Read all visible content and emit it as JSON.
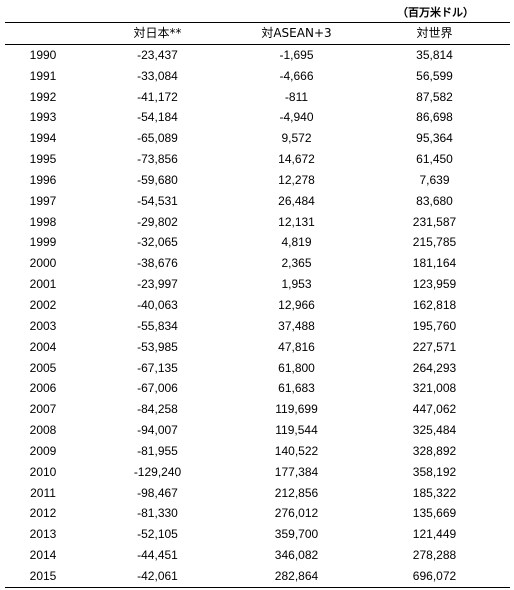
{
  "unit_note": "（百万米ドル）",
  "columns": {
    "year": "",
    "japan": "対日本**",
    "asean": "対ASEAN+3",
    "world": "対世界"
  },
  "rows": [
    {
      "year": "1990",
      "japan": "-23,437",
      "asean": "-1,695",
      "world": "35,814"
    },
    {
      "year": "1991",
      "japan": "-33,084",
      "asean": "-4,666",
      "world": "56,599"
    },
    {
      "year": "1992",
      "japan": "-41,172",
      "asean": "-811",
      "world": "87,582"
    },
    {
      "year": "1993",
      "japan": "-54,184",
      "asean": "-4,940",
      "world": "86,698"
    },
    {
      "year": "1994",
      "japan": "-65,089",
      "asean": "9,572",
      "world": "95,364"
    },
    {
      "year": "1995",
      "japan": "-73,856",
      "asean": "14,672",
      "world": "61,450"
    },
    {
      "year": "1996",
      "japan": "-59,680",
      "asean": "12,278",
      "world": "7,639"
    },
    {
      "year": "1997",
      "japan": "-54,531",
      "asean": "26,484",
      "world": "83,680"
    },
    {
      "year": "1998",
      "japan": "-29,802",
      "asean": "12,131",
      "world": "231,587"
    },
    {
      "year": "1999",
      "japan": "-32,065",
      "asean": "4,819",
      "world": "215,785"
    },
    {
      "year": "2000",
      "japan": "-38,676",
      "asean": "2,365",
      "world": "181,164"
    },
    {
      "year": "2001",
      "japan": "-23,997",
      "asean": "1,953",
      "world": "123,959"
    },
    {
      "year": "2002",
      "japan": "-40,063",
      "asean": "12,966",
      "world": "162,818"
    },
    {
      "year": "2003",
      "japan": "-55,834",
      "asean": "37,488",
      "world": "195,760"
    },
    {
      "year": "2004",
      "japan": "-53,985",
      "asean": "47,816",
      "world": "227,571"
    },
    {
      "year": "2005",
      "japan": "-67,135",
      "asean": "61,800",
      "world": "264,293"
    },
    {
      "year": "2006",
      "japan": "-67,006",
      "asean": "61,683",
      "world": "321,008"
    },
    {
      "year": "2007",
      "japan": "-84,258",
      "asean": "119,699",
      "world": "447,062"
    },
    {
      "year": "2008",
      "japan": "-94,007",
      "asean": "119,544",
      "world": "325,484"
    },
    {
      "year": "2009",
      "japan": "-81,955",
      "asean": "140,522",
      "world": "328,892"
    },
    {
      "year": "2010",
      "japan": "-129,240",
      "asean": "177,384",
      "world": "358,192"
    },
    {
      "year": "2011",
      "japan": "-98,467",
      "asean": "212,856",
      "world": "185,322"
    },
    {
      "year": "2012",
      "japan": "-81,330",
      "asean": "276,012",
      "world": "135,669"
    },
    {
      "year": "2013",
      "japan": "-52,105",
      "asean": "359,700",
      "world": "121,449"
    },
    {
      "year": "2014",
      "japan": "-44,451",
      "asean": "346,082",
      "world": "278,288"
    },
    {
      "year": "2015",
      "japan": "-42,061",
      "asean": "282,864",
      "world": "696,072"
    }
  ]
}
